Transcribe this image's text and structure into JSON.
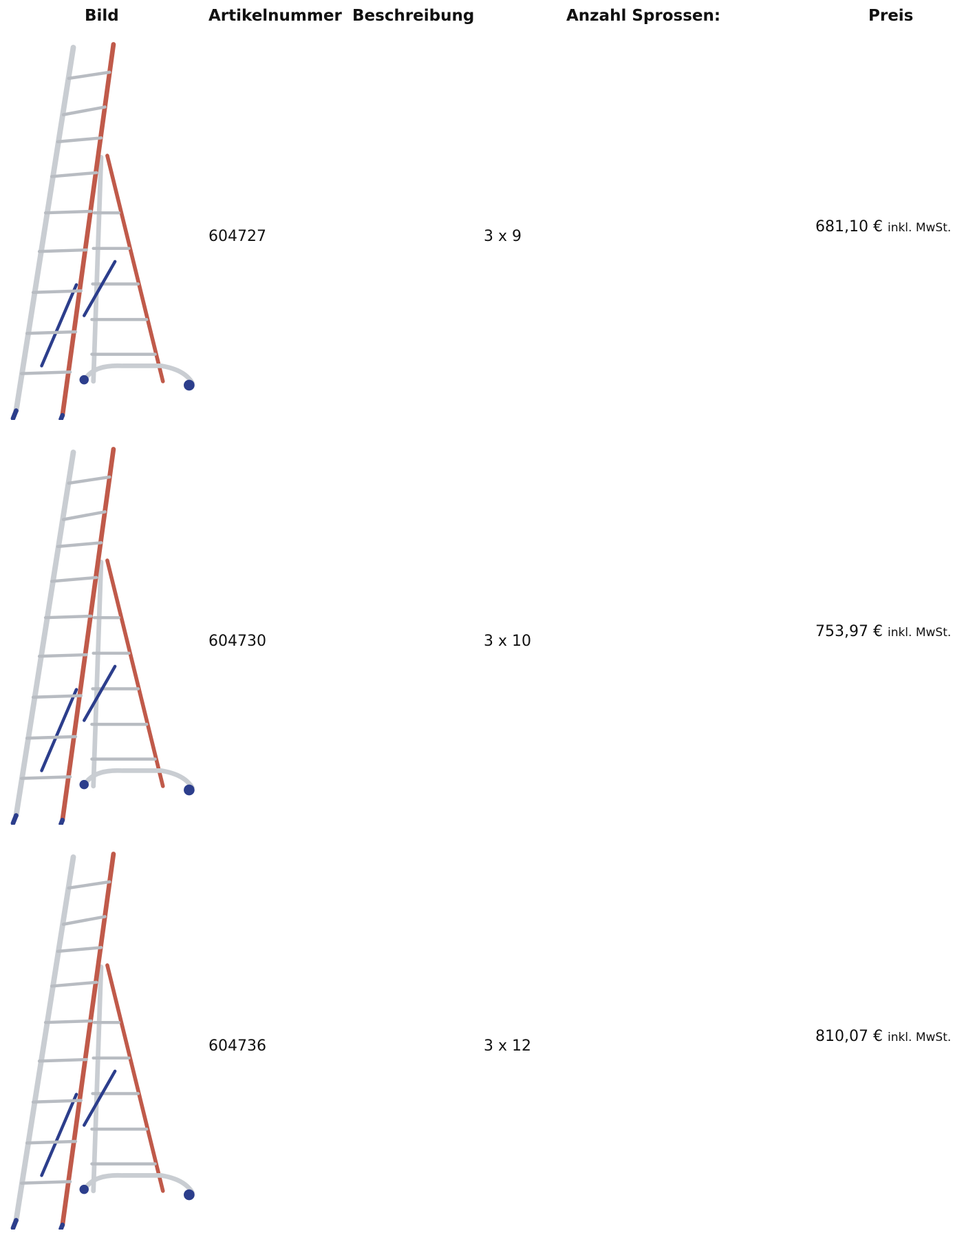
{
  "header": {
    "columns": [
      "Bild",
      "Artikelnummer",
      "Beschreibung",
      "Anzahl Sprossen:",
      "Preis"
    ]
  },
  "rows": [
    {
      "article_number": "604727",
      "rungs": "3 x 9",
      "price": "681,10 €",
      "price_note": "inkl. MwSt."
    },
    {
      "article_number": "604730",
      "rungs": "3 x 10",
      "price": "753,97 €",
      "price_note": "inkl. MwSt."
    },
    {
      "article_number": "604736",
      "rungs": "3 x 12",
      "price": "810,07 €",
      "price_note": "inkl. MwSt."
    }
  ]
}
